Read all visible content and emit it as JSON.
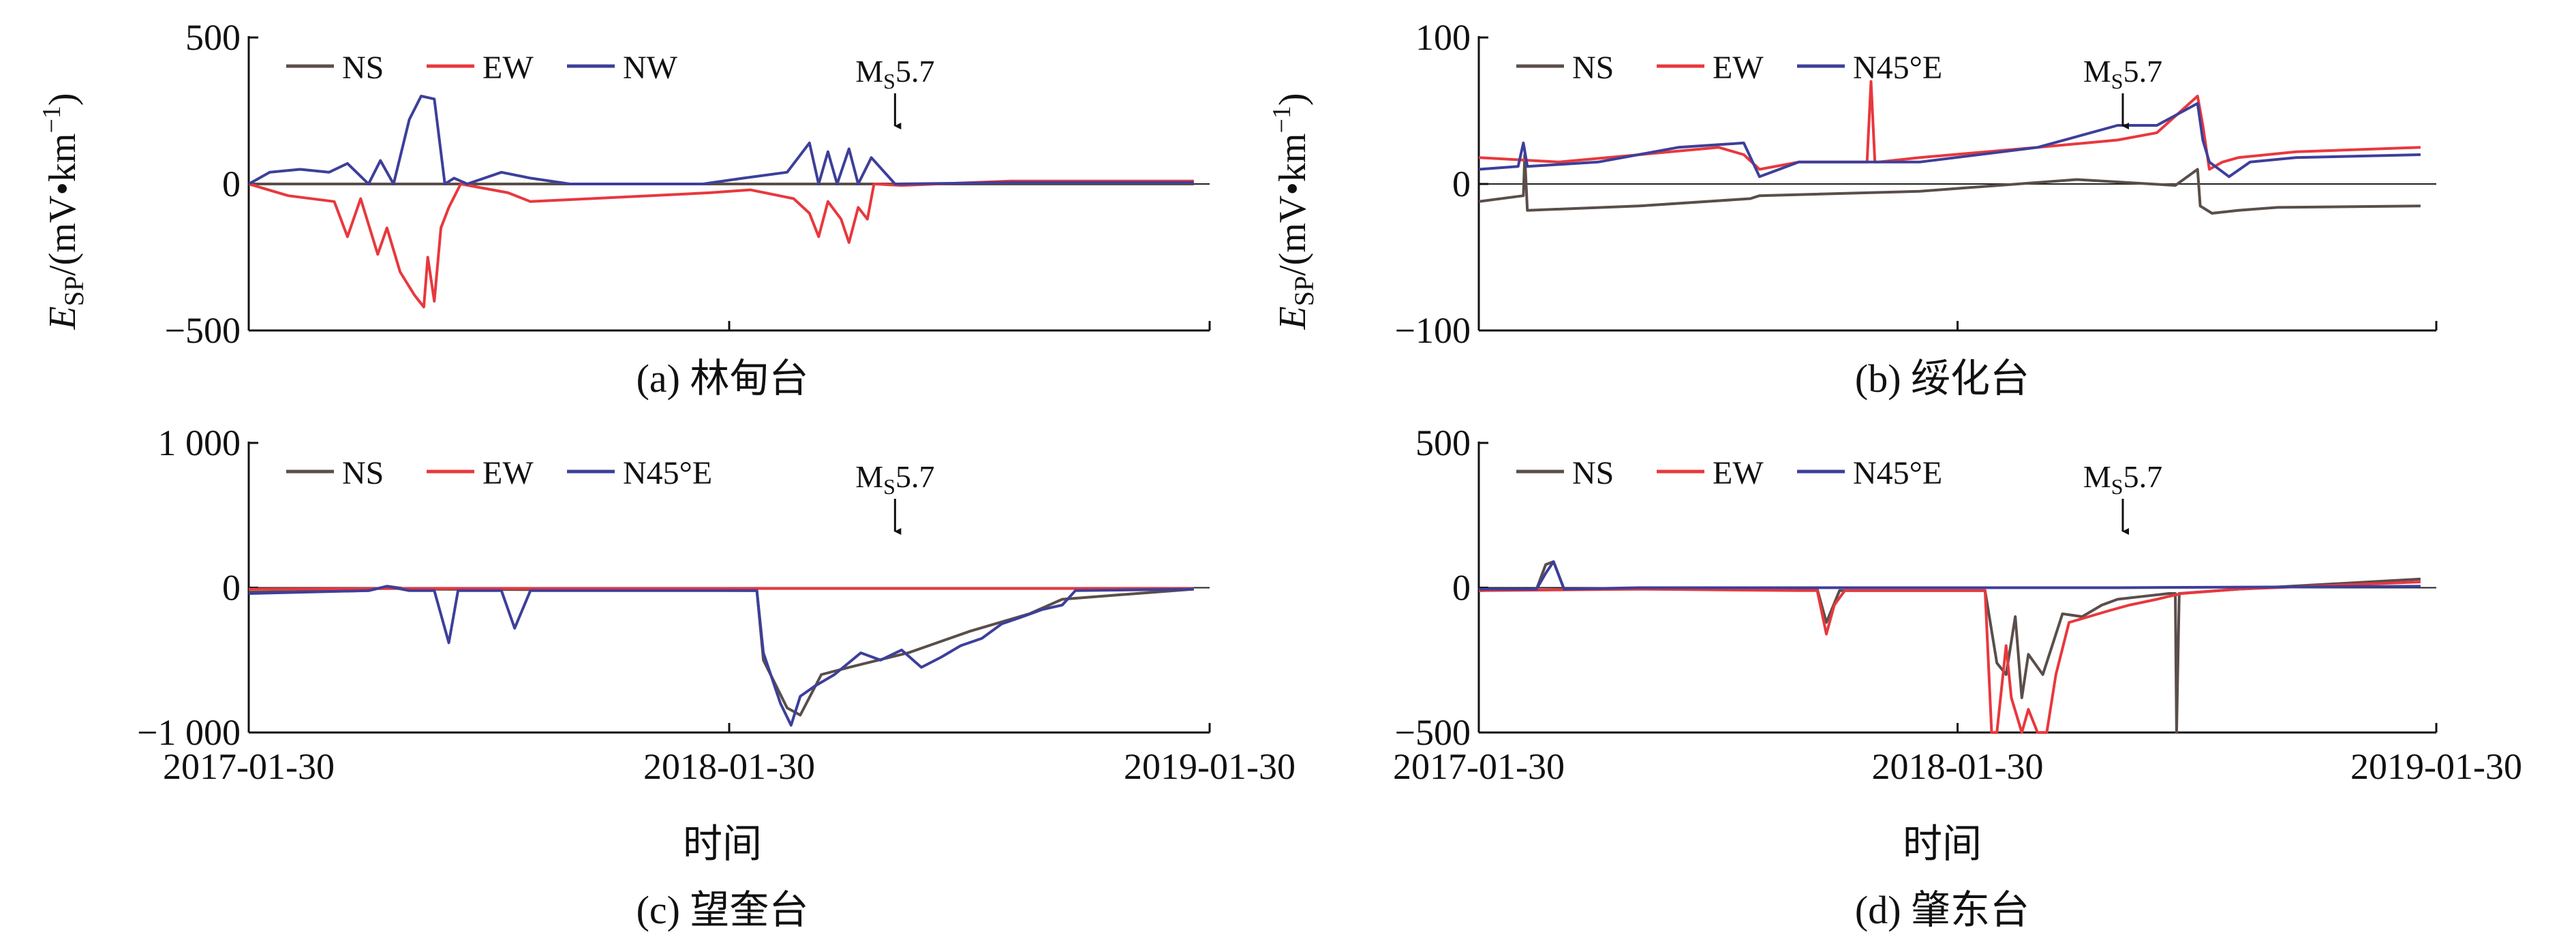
{
  "figure": {
    "date_axis_label": "时间",
    "ylabel_main": "E",
    "ylabel_sub": "SP",
    "ylabel_rest": "/(mV•km",
    "ylabel_exp": "−1",
    "ylabel_close": ")",
    "event_label_main": "M",
    "event_label_sub": "S",
    "event_label_rest": "5.7"
  },
  "colors": {
    "NS": "#5a4e4a",
    "EW": "#e8383d",
    "third": "#3d3f9a"
  },
  "chart_data": [
    {
      "type": "line",
      "caption": "(a) 林甸台",
      "xlim": [
        "2017-01-30",
        "2019-01-30"
      ],
      "ylim": [
        -500,
        500
      ],
      "yticks": [
        500,
        0,
        -500
      ],
      "yticklabels": [
        "500",
        "0",
        "−500"
      ],
      "xtick_dates": [
        "2017-01-30",
        "2018-01-30",
        "2019-01-30"
      ],
      "xticklabels": [],
      "event_date": "2018-06-05",
      "series": [
        {
          "name": "NS",
          "x": [
            "2017-01-30",
            "2017-06-01",
            "2017-10-01",
            "2018-02-01",
            "2018-06-01",
            "2018-10-01",
            "2019-01-18"
          ],
          "y": [
            0,
            0,
            0,
            0,
            0,
            0,
            0
          ]
        },
        {
          "name": "EW",
          "x": [
            "2017-01-30",
            "2017-03-01",
            "2017-04-05",
            "2017-04-15",
            "2017-04-25",
            "2017-05-08",
            "2017-05-15",
            "2017-05-25",
            "2017-06-05",
            "2017-06-12",
            "2017-06-15",
            "2017-06-20",
            "2017-06-25",
            "2017-07-01",
            "2017-07-10",
            "2017-08-15",
            "2017-09-01",
            "2017-12-01",
            "2018-01-15",
            "2018-02-15",
            "2018-03-20",
            "2018-04-01",
            "2018-04-08",
            "2018-04-15",
            "2018-04-25",
            "2018-05-01",
            "2018-05-08",
            "2018-05-15",
            "2018-05-20",
            "2018-06-10",
            "2018-09-01",
            "2019-01-18"
          ],
          "y": [
            0,
            -40,
            -60,
            -180,
            -50,
            -240,
            -150,
            -300,
            -380,
            -420,
            -250,
            -400,
            -150,
            -80,
            0,
            -30,
            -60,
            -40,
            -30,
            -20,
            -50,
            -100,
            -180,
            -60,
            -120,
            -200,
            -80,
            -120,
            0,
            -5,
            10,
            10
          ]
        },
        {
          "name": "NW",
          "x": [
            "2017-01-30",
            "2017-02-15",
            "2017-03-10",
            "2017-04-01",
            "2017-04-15",
            "2017-05-01",
            "2017-05-10",
            "2017-05-20",
            "2017-06-01",
            "2017-06-10",
            "2017-06-20",
            "2017-06-28",
            "2017-07-05",
            "2017-07-15",
            "2017-08-10",
            "2017-09-01",
            "2017-10-01",
            "2017-11-15",
            "2018-01-10",
            "2018-02-10",
            "2018-03-15",
            "2018-04-01",
            "2018-04-08",
            "2018-04-15",
            "2018-04-22",
            "2018-05-01",
            "2018-05-08",
            "2018-05-18",
            "2018-06-05",
            "2018-09-01",
            "2019-01-18"
          ],
          "y": [
            0,
            40,
            50,
            40,
            70,
            0,
            80,
            0,
            220,
            300,
            290,
            0,
            20,
            0,
            40,
            20,
            0,
            0,
            0,
            20,
            40,
            140,
            0,
            110,
            0,
            120,
            0,
            90,
            0,
            5,
            5
          ]
        }
      ]
    },
    {
      "type": "line",
      "caption": "(b) 绥化台",
      "xlim": [
        "2017-01-30",
        "2019-01-30"
      ],
      "ylim": [
        -100,
        100
      ],
      "yticks": [
        100,
        0,
        -100
      ],
      "yticklabels": [
        "100",
        "0",
        "−100"
      ],
      "xtick_dates": [
        "2017-01-30",
        "2018-01-30",
        "2019-01-30"
      ],
      "xticklabels": [],
      "event_date": "2018-06-05",
      "series": [
        {
          "name": "NS",
          "x": [
            "2017-01-30",
            "2017-03-05",
            "2017-03-06",
            "2017-03-08",
            "2017-06-01",
            "2017-08-25",
            "2017-09-01",
            "2018-01-01",
            "2018-05-01",
            "2018-07-15",
            "2018-08-01",
            "2018-08-03",
            "2018-08-12",
            "2018-09-01",
            "2018-10-01",
            "2019-01-18"
          ],
          "y": [
            -12,
            -8,
            20,
            -18,
            -15,
            -10,
            -8,
            -5,
            3,
            -1,
            10,
            -15,
            -20,
            -18,
            -16,
            -15
          ]
        },
        {
          "name": "EW",
          "x": [
            "2017-01-30",
            "2017-04-01",
            "2017-08-01",
            "2017-08-20",
            "2017-09-01",
            "2017-10-01",
            "2017-11-22",
            "2017-11-25",
            "2017-11-28",
            "2017-12-01",
            "2018-01-01",
            "2018-04-01",
            "2018-06-01",
            "2018-07-01",
            "2018-08-01",
            "2018-08-05",
            "2018-08-10",
            "2018-08-20",
            "2018-09-01",
            "2018-10-15",
            "2019-01-18"
          ],
          "y": [
            18,
            15,
            25,
            20,
            10,
            15,
            15,
            70,
            15,
            15,
            18,
            25,
            30,
            35,
            60,
            40,
            10,
            15,
            18,
            22,
            25
          ]
        },
        {
          "name": "N45°E",
          "x": [
            "2017-01-30",
            "2017-03-01",
            "2017-03-05",
            "2017-03-08",
            "2017-05-01",
            "2017-07-01",
            "2017-08-20",
            "2017-09-01",
            "2017-10-01",
            "2018-01-01",
            "2018-04-01",
            "2018-06-01",
            "2018-07-01",
            "2018-08-01",
            "2018-08-05",
            "2018-08-10",
            "2018-08-25",
            "2018-09-10",
            "2018-10-15",
            "2019-01-18"
          ],
          "y": [
            10,
            12,
            28,
            12,
            15,
            25,
            28,
            5,
            15,
            15,
            25,
            40,
            40,
            55,
            30,
            15,
            5,
            15,
            18,
            20
          ]
        }
      ]
    },
    {
      "type": "line",
      "caption": "(c) 望奎台",
      "xlim": [
        "2017-01-30",
        "2019-01-30"
      ],
      "ylim": [
        -1000,
        1000
      ],
      "yticks": [
        1000,
        0,
        -1000
      ],
      "yticklabels": [
        "1 000",
        "0",
        "−1 000"
      ],
      "xtick_dates": [
        "2017-01-30",
        "2018-01-30",
        "2019-01-30"
      ],
      "xticklabels": [
        "2017-01-30",
        "2018-01-30",
        "2019-01-30"
      ],
      "event_date": "2018-06-05",
      "series": [
        {
          "name": "NS",
          "x": [
            "2017-01-30",
            "2017-05-01",
            "2017-05-15",
            "2017-06-01",
            "2018-02-20",
            "2018-02-25",
            "2018-03-15",
            "2018-03-25",
            "2018-04-10",
            "2018-05-01",
            "2018-06-15",
            "2018-08-01",
            "2018-09-15",
            "2018-10-10",
            "2019-01-18"
          ],
          "y": [
            -30,
            -20,
            10,
            -10,
            -20,
            -500,
            -830,
            -880,
            -600,
            -550,
            -450,
            -300,
            -180,
            -80,
            -10
          ]
        },
        {
          "name": "EW",
          "x": [
            "2017-01-30",
            "2017-06-01",
            "2018-01-01",
            "2018-06-01",
            "2019-01-18"
          ],
          "y": [
            -10,
            -5,
            -5,
            -5,
            -5
          ]
        },
        {
          "name": "N45°E",
          "x": [
            "2017-01-30",
            "2017-05-01",
            "2017-05-15",
            "2017-06-01",
            "2017-06-20",
            "2017-07-01",
            "2017-07-08",
            "2017-07-15",
            "2017-08-10",
            "2017-08-20",
            "2017-09-01",
            "2018-02-20",
            "2018-02-25",
            "2018-03-10",
            "2018-03-18",
            "2018-03-25",
            "2018-04-05",
            "2018-04-20",
            "2018-05-10",
            "2018-05-25",
            "2018-06-10",
            "2018-06-25",
            "2018-07-10",
            "2018-07-25",
            "2018-08-10",
            "2018-08-25",
            "2018-09-10",
            "2018-09-25",
            "2018-10-10",
            "2018-10-20",
            "2019-01-18"
          ],
          "y": [
            -40,
            -20,
            10,
            -20,
            -20,
            -380,
            -20,
            -20,
            -20,
            -280,
            -20,
            -20,
            -450,
            -800,
            -950,
            -750,
            -680,
            -600,
            -450,
            -500,
            -430,
            -550,
            -480,
            -400,
            -350,
            -250,
            -200,
            -150,
            -120,
            -20,
            -10
          ]
        }
      ]
    },
    {
      "type": "line",
      "caption": "(d) 肇东台",
      "xlim": [
        "2017-01-30",
        "2019-01-30"
      ],
      "ylim": [
        -500,
        500
      ],
      "yticks": [
        500,
        0,
        -500
      ],
      "yticklabels": [
        "500",
        "0",
        "−500"
      ],
      "xtick_dates": [
        "2017-01-30",
        "2018-01-30",
        "2019-01-30"
      ],
      "xticklabels": [
        "2017-01-30",
        "2018-01-30",
        "2019-01-30"
      ],
      "event_date": "2018-06-05",
      "series": [
        {
          "name": "NS",
          "x": [
            "2017-01-30",
            "2017-03-15",
            "2017-03-22",
            "2017-03-28",
            "2017-04-05",
            "2017-06-01",
            "2017-10-01",
            "2017-10-15",
            "2017-10-22",
            "2017-11-01",
            "2018-02-01",
            "2018-02-20",
            "2018-03-01",
            "2018-03-08",
            "2018-03-15",
            "2018-03-20",
            "2018-03-25",
            "2018-04-05",
            "2018-04-20",
            "2018-05-05",
            "2018-05-20",
            "2018-06-01",
            "2018-06-20",
            "2018-07-10",
            "2018-07-15",
            "2018-07-16",
            "2018-07-18",
            "2018-09-01",
            "2019-01-18"
          ],
          "y": [
            -10,
            -5,
            80,
            90,
            -5,
            -5,
            -5,
            -5,
            -120,
            -10,
            -10,
            -10,
            -260,
            -300,
            -100,
            -380,
            -230,
            -300,
            -90,
            -100,
            -60,
            -40,
            -30,
            -20,
            -20,
            -500,
            -20,
            -5,
            30
          ]
        },
        {
          "name": "EW",
          "x": [
            "2017-01-30",
            "2017-06-01",
            "2017-10-01",
            "2017-10-15",
            "2017-10-22",
            "2017-10-28",
            "2017-11-05",
            "2018-02-01",
            "2018-02-20",
            "2018-02-25",
            "2018-03-01",
            "2018-03-08",
            "2018-03-12",
            "2018-03-20",
            "2018-03-25",
            "2018-04-01",
            "2018-04-08",
            "2018-04-15",
            "2018-04-25",
            "2018-05-10",
            "2018-05-25",
            "2018-06-10",
            "2018-07-01",
            "2018-07-10",
            "2018-07-20",
            "2018-09-01",
            "2019-01-18"
          ],
          "y": [
            -10,
            -5,
            -10,
            -10,
            -160,
            -60,
            -10,
            -10,
            -10,
            -500,
            -500,
            -200,
            -380,
            -500,
            -420,
            -500,
            -500,
            -300,
            -120,
            -100,
            -80,
            -60,
            -40,
            -30,
            -20,
            -5,
            20
          ]
        },
        {
          "name": "N45°E",
          "x": [
            "2017-01-30",
            "2017-03-15",
            "2017-03-22",
            "2017-03-28",
            "2017-04-05",
            "2017-06-01",
            "2018-01-01",
            "2018-06-01",
            "2019-01-18"
          ],
          "y": [
            -5,
            -5,
            50,
            90,
            -5,
            0,
            0,
            0,
            5
          ]
        }
      ]
    }
  ]
}
